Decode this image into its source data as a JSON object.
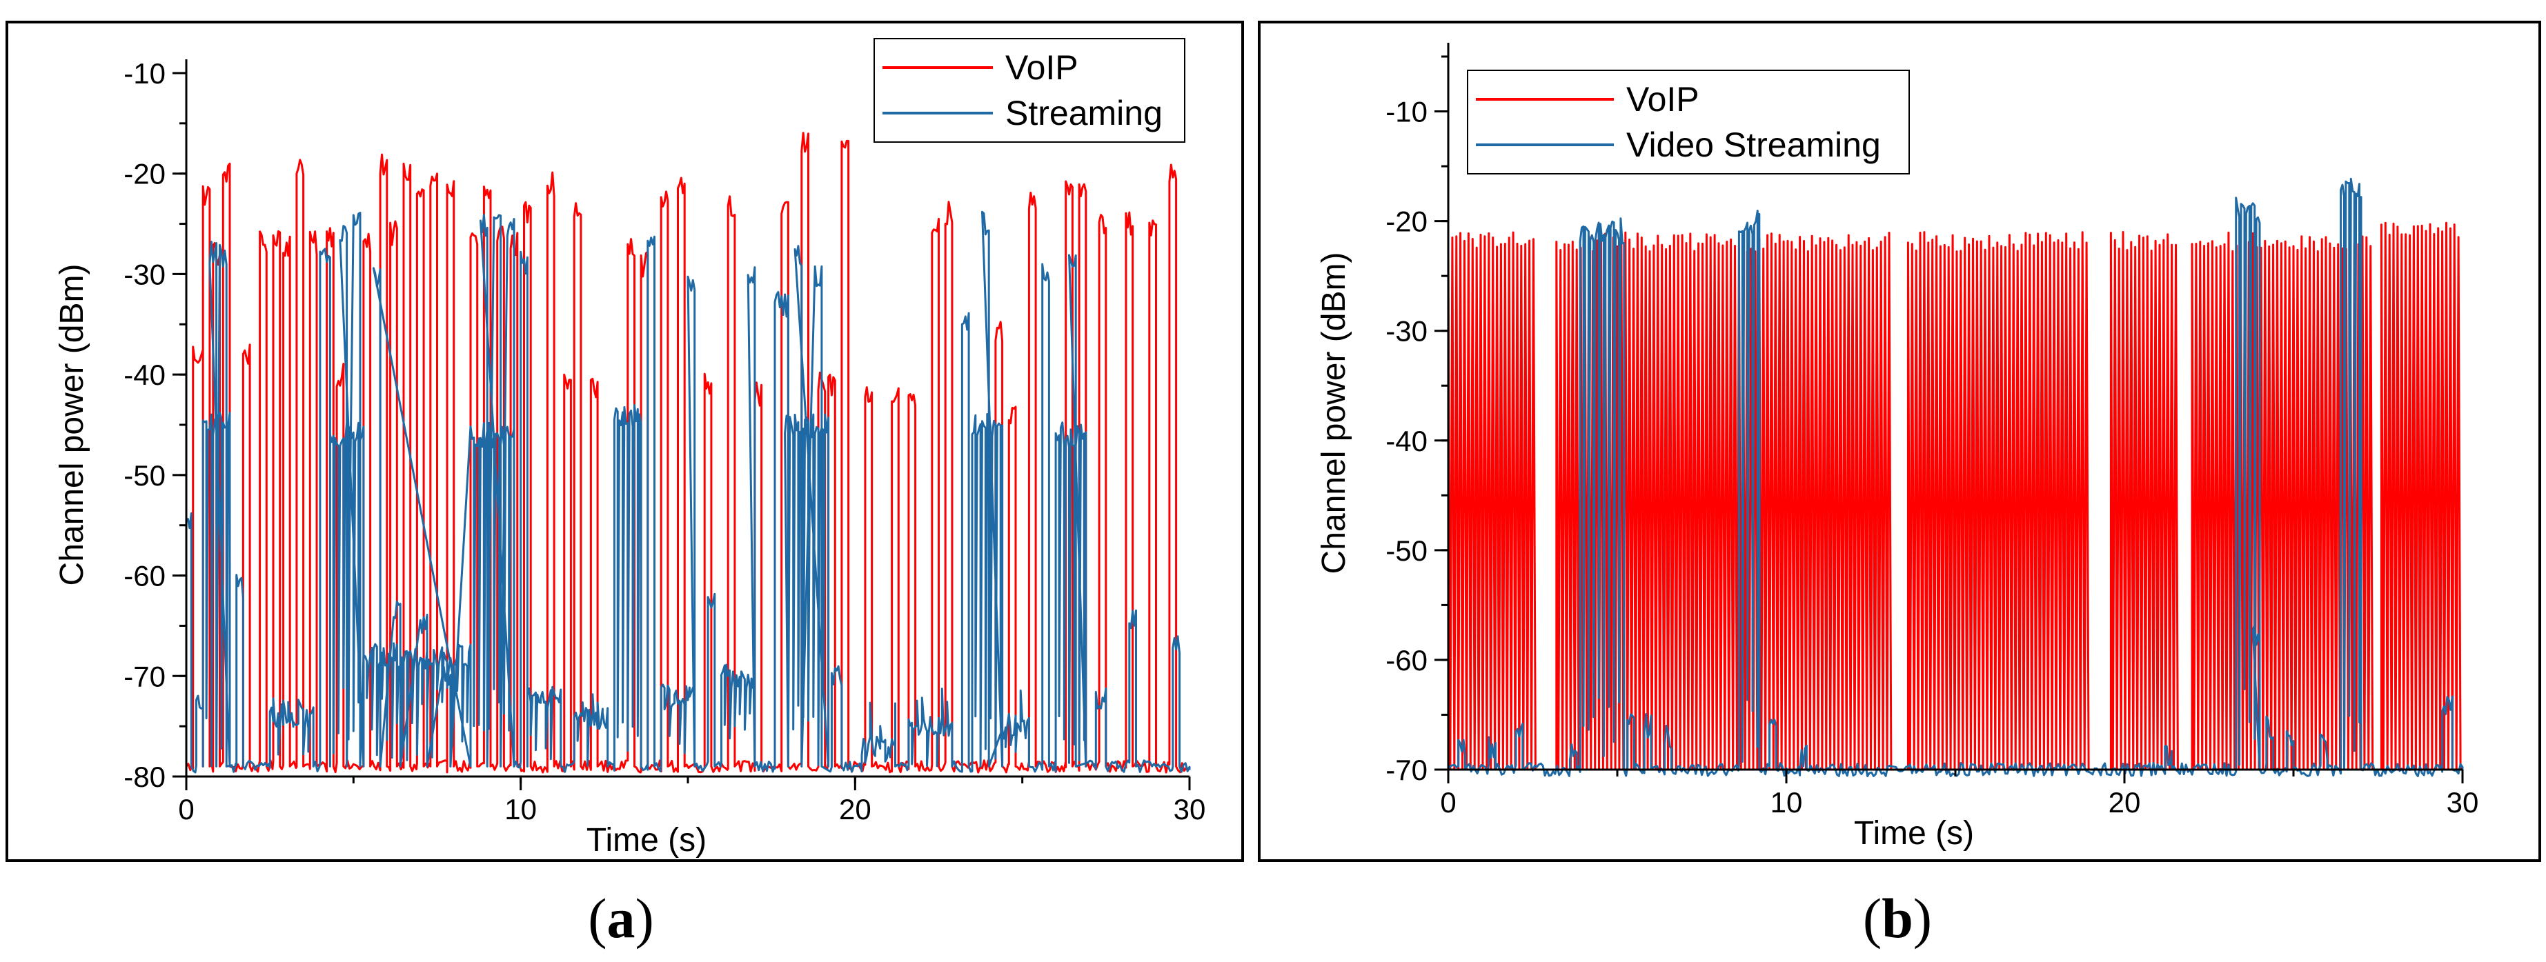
{
  "chart_data": [
    {
      "panel": "a",
      "type": "line",
      "xlabel": "Time (s)",
      "ylabel": "Channel power (dBm)",
      "xlim": [
        0,
        30
      ],
      "ylim": [
        -80,
        -10
      ],
      "xticks": [
        0,
        10,
        20,
        30
      ],
      "yticks": [
        -80,
        -70,
        -60,
        -50,
        -40,
        -30,
        -20,
        -10
      ],
      "legend_position": "top-right",
      "series": [
        {
          "name": "VoIP",
          "color": "#ff0000",
          "baseline": -79,
          "bursts": [
            [
              0.2,
              0.5,
              -38
            ],
            [
              0.5,
              0.7,
              -22
            ],
            [
              0.8,
              1.0,
              -28
            ],
            [
              1.1,
              1.3,
              -20
            ],
            [
              1.7,
              1.9,
              -38
            ],
            [
              2.2,
              2.4,
              -27
            ],
            [
              2.6,
              2.8,
              -26
            ],
            [
              2.9,
              3.1,
              -27
            ],
            [
              3.3,
              3.5,
              -19
            ],
            [
              3.7,
              3.9,
              -27
            ],
            [
              4.2,
              4.4,
              -26
            ],
            [
              4.5,
              4.7,
              -40
            ],
            [
              5.3,
              5.5,
              -27
            ],
            [
              5.8,
              6.0,
              -19
            ],
            [
              6.1,
              6.3,
              -26
            ],
            [
              6.5,
              6.7,
              -20
            ],
            [
              6.9,
              7.1,
              -22
            ],
            [
              7.3,
              7.5,
              -21
            ],
            [
              7.8,
              8.0,
              -21
            ],
            [
              8.5,
              8.7,
              -27
            ],
            [
              8.9,
              9.1,
              -22
            ],
            [
              9.3,
              9.5,
              -26
            ],
            [
              9.7,
              9.9,
              -27
            ],
            [
              10.1,
              10.3,
              -24
            ],
            [
              10.8,
              11.0,
              -21
            ],
            [
              11.3,
              11.5,
              -41
            ],
            [
              11.6,
              11.8,
              -24
            ],
            [
              12.1,
              12.3,
              -41
            ],
            [
              13.2,
              13.4,
              -27
            ],
            [
              13.6,
              13.8,
              -29
            ],
            [
              14.2,
              14.4,
              -23
            ],
            [
              14.7,
              14.9,
              -21
            ],
            [
              15.5,
              15.7,
              -41
            ],
            [
              16.2,
              16.4,
              -23
            ],
            [
              17.0,
              17.2,
              -42
            ],
            [
              17.8,
              18.0,
              -24
            ],
            [
              18.4,
              18.6,
              -17
            ],
            [
              18.9,
              19.1,
              -41
            ],
            [
              19.2,
              19.4,
              -41
            ],
            [
              19.6,
              19.8,
              -18
            ],
            [
              20.3,
              20.5,
              -42
            ],
            [
              21.1,
              21.3,
              -42
            ],
            [
              21.6,
              21.8,
              -42
            ],
            [
              22.3,
              22.5,
              -25
            ],
            [
              22.7,
              22.9,
              -24
            ],
            [
              24.2,
              24.4,
              -36
            ],
            [
              24.6,
              24.8,
              -44
            ],
            [
              25.2,
              25.4,
              -23
            ],
            [
              26.3,
              26.5,
              -22
            ],
            [
              26.7,
              26.9,
              -21
            ],
            [
              27.3,
              27.5,
              -25
            ],
            [
              28.1,
              28.3,
              -25
            ],
            [
              28.8,
              29.0,
              -25
            ],
            [
              29.4,
              29.6,
              -20
            ]
          ]
        },
        {
          "name": "Streaming",
          "color": "#1f6aa5",
          "baseline": -79,
          "bursts": [
            [
              0.0,
              0.15,
              -55
            ],
            [
              0.3,
              0.5,
              -73
            ],
            [
              0.5,
              1.3,
              -45
            ],
            [
              0.7,
              0.9,
              -28
            ],
            [
              1.0,
              1.2,
              -28
            ],
            [
              1.5,
              1.7,
              -61
            ],
            [
              2.5,
              3.8,
              -74
            ],
            [
              4.0,
              4.3,
              -28
            ],
            [
              4.3,
              5.3,
              -46
            ],
            [
              4.6,
              4.8,
              -26
            ],
            [
              5.0,
              5.2,
              -25
            ],
            [
              5.3,
              8.5,
              -68
            ],
            [
              5.6,
              5.8,
              -30
            ],
            [
              6.2,
              6.4,
              -63
            ],
            [
              7.0,
              7.2,
              -65
            ],
            [
              7.7,
              7.9,
              -70
            ],
            [
              8.5,
              9.8,
              -46
            ],
            [
              8.8,
              9.0,
              -25
            ],
            [
              9.2,
              9.4,
              -25
            ],
            [
              9.6,
              9.8,
              -25
            ],
            [
              10.0,
              10.2,
              -29
            ],
            [
              10.2,
              11.2,
              -72
            ],
            [
              11.6,
              12.6,
              -74
            ],
            [
              12.8,
              13.6,
              -44
            ],
            [
              13.8,
              14.0,
              -27
            ],
            [
              14.2,
              15.2,
              -72
            ],
            [
              15.0,
              15.2,
              -31
            ],
            [
              15.6,
              15.8,
              -63
            ],
            [
              16.0,
              17.0,
              -70
            ],
            [
              16.8,
              17.0,
              -30
            ],
            [
              17.6,
              18.0,
              -33
            ],
            [
              17.9,
              19.2,
              -45
            ],
            [
              18.2,
              18.4,
              -28
            ],
            [
              18.8,
              19.0,
              -30
            ],
            [
              19.3,
              19.6,
              -70
            ],
            [
              20.2,
              21.2,
              -77
            ],
            [
              21.6,
              22.9,
              -75
            ],
            [
              23.2,
              23.4,
              -35
            ],
            [
              23.5,
              24.4,
              -45
            ],
            [
              23.8,
              24.0,
              -25
            ],
            [
              24.4,
              25.2,
              -75
            ],
            [
              25.6,
              25.8,
              -30
            ],
            [
              26.0,
              26.9,
              -46
            ],
            [
              26.4,
              26.6,
              -28
            ],
            [
              27.2,
              27.5,
              -72
            ],
            [
              28.2,
              28.4,
              -64
            ],
            [
              29.5,
              29.7,
              -67
            ]
          ]
        }
      ]
    },
    {
      "panel": "b",
      "type": "line",
      "xlabel": "Time (s)",
      "ylabel": "Channel power (dBm)",
      "xlim": [
        0,
        30
      ],
      "ylim": [
        -70,
        -5
      ],
      "xticks": [
        0,
        10,
        20,
        30
      ],
      "yticks": [
        -70,
        -60,
        -50,
        -40,
        -30,
        -20,
        -10
      ],
      "legend_position": "top-left",
      "series": [
        {
          "name": "VoIP",
          "color": "#ff0000",
          "baseline": -70,
          "dense_segments": [
            [
              0.0,
              2.6,
              0.12,
              -21
            ],
            [
              3.2,
              13.1,
              0.12,
              -21
            ],
            [
              13.6,
              18.9,
              0.12,
              -21
            ],
            [
              19.6,
              21.6,
              0.12,
              -21
            ],
            [
              22.0,
              27.4,
              0.12,
              -21
            ],
            [
              27.6,
              30.0,
              0.12,
              -20
            ]
          ]
        },
        {
          "name": "Video Streaming",
          "color": "#1f6aa5",
          "baseline": -70,
          "bursts": [
            [
              0.3,
              0.5,
              -68
            ],
            [
              1.2,
              1.4,
              -68
            ],
            [
              2.0,
              2.2,
              -67
            ],
            [
              3.6,
              3.8,
              -68
            ],
            [
              3.9,
              5.2,
              -21
            ],
            [
              5.3,
              5.5,
              -65
            ],
            [
              5.8,
              6.0,
              -66
            ],
            [
              6.4,
              6.6,
              -67
            ],
            [
              8.6,
              9.2,
              -20
            ],
            [
              9.5,
              9.7,
              -66
            ],
            [
              10.4,
              10.6,
              -69
            ],
            [
              21.2,
              21.4,
              -69
            ],
            [
              23.3,
              24.0,
              -19
            ],
            [
              23.8,
              24.0,
              -58
            ],
            [
              24.2,
              24.4,
              -66
            ],
            [
              24.8,
              25.0,
              -67
            ],
            [
              25.8,
              26.0,
              -68
            ],
            [
              26.4,
              27.0,
              -17
            ],
            [
              29.4,
              29.7,
              -64
            ]
          ]
        }
      ]
    }
  ],
  "captions": {
    "a": "a",
    "b": "b"
  }
}
